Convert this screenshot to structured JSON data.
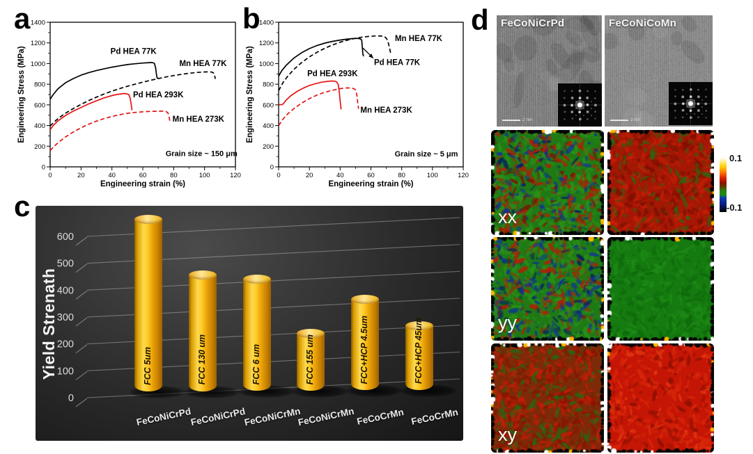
{
  "figure": {
    "panel_labels": {
      "a": "a",
      "b": "b",
      "c": "c",
      "d": "d"
    }
  },
  "chart_data": [
    {
      "id": "a",
      "type": "line",
      "xlabel": "Engineering strain (%)",
      "ylabel": "Engineering Stress (MPa)",
      "xlim": [
        0,
        120
      ],
      "ylim": [
        0,
        1400
      ],
      "xticks": [
        0,
        20,
        40,
        60,
        80,
        100,
        120
      ],
      "yticks": [
        0,
        200,
        400,
        600,
        800,
        1000,
        1200,
        1400
      ],
      "annotation": {
        "text": "Grain size ~ 150 μm",
        "x": 98,
        "y": 105
      },
      "series": [
        {
          "name": "Pd HEA 77K",
          "color": "#000000",
          "dash": false,
          "label_pos": [
            54,
            1095
          ],
          "points": [
            [
              0,
              655
            ],
            [
              2,
              700
            ],
            [
              5,
              755
            ],
            [
              10,
              815
            ],
            [
              15,
              855
            ],
            [
              20,
              888
            ],
            [
              25,
              913
            ],
            [
              30,
              933
            ],
            [
              35,
              950
            ],
            [
              40,
              965
            ],
            [
              45,
              978
            ],
            [
              50,
              990
            ],
            [
              55,
              998
            ],
            [
              60,
              1005
            ],
            [
              64,
              1009
            ],
            [
              66,
              1010
            ],
            [
              67.5,
              1003
            ],
            [
              68.3,
              960
            ],
            [
              68.8,
              900
            ],
            [
              69.2,
              862
            ],
            [
              70,
              856
            ]
          ]
        },
        {
          "name": "Mn HEA 77K",
          "color": "#000000",
          "dash": true,
          "label_pos": [
            99,
            975
          ],
          "points": [
            [
              0,
              395
            ],
            [
              3,
              440
            ],
            [
              6,
              478
            ],
            [
              10,
              520
            ],
            [
              15,
              565
            ],
            [
              20,
              605
            ],
            [
              25,
              642
            ],
            [
              30,
              675
            ],
            [
              35,
              706
            ],
            [
              40,
              733
            ],
            [
              45,
              758
            ],
            [
              50,
              780
            ],
            [
              55,
              800
            ],
            [
              60,
              820
            ],
            [
              65,
              838
            ],
            [
              70,
              855
            ],
            [
              75,
              870
            ],
            [
              80,
              884
            ],
            [
              85,
              896
            ],
            [
              90,
              906
            ],
            [
              95,
              914
            ],
            [
              100,
              919
            ],
            [
              103,
              920
            ],
            [
              105,
              917
            ],
            [
              106,
              905
            ],
            [
              106.6,
              878
            ],
            [
              107,
              852
            ]
          ]
        },
        {
          "name": "Pd HEA 293K",
          "color": "#e41313",
          "dash": false,
          "label_pos": [
            70,
            672
          ],
          "points": [
            [
              0,
              360
            ],
            [
              2,
              400
            ],
            [
              5,
              445
            ],
            [
              10,
              498
            ],
            [
              15,
              540
            ],
            [
              20,
              575
            ],
            [
              25,
              610
            ],
            [
              30,
              640
            ],
            [
              35,
              668
            ],
            [
              40,
              690
            ],
            [
              43,
              700
            ],
            [
              46,
              707
            ],
            [
              48,
              710
            ],
            [
              50,
              706
            ],
            [
              51,
              698
            ],
            [
              51.8,
              665
            ],
            [
              52.4,
              610
            ],
            [
              53,
              548
            ]
          ]
        },
        {
          "name": "Mn HEA 273K",
          "color": "#e41313",
          "dash": true,
          "label_pos": [
            96,
            438
          ],
          "points": [
            [
              0,
              158
            ],
            [
              3,
              205
            ],
            [
              6,
              245
            ],
            [
              10,
              290
            ],
            [
              15,
              338
            ],
            [
              20,
              378
            ],
            [
              25,
              413
            ],
            [
              30,
              443
            ],
            [
              35,
              468
            ],
            [
              40,
              488
            ],
            [
              45,
              505
            ],
            [
              50,
              518
            ],
            [
              55,
              527
            ],
            [
              60,
              533
            ],
            [
              65,
              537
            ],
            [
              70,
              539
            ],
            [
              73,
              539
            ],
            [
              75,
              535
            ],
            [
              76,
              527
            ],
            [
              76.6,
              510
            ],
            [
              77.2,
              468
            ],
            [
              77.8,
              432
            ]
          ]
        }
      ]
    },
    {
      "id": "b",
      "type": "line",
      "xlabel": "Engineering strain (%)",
      "ylabel": "Engineering Stress (MPa)",
      "xlim": [
        0,
        120
      ],
      "ylim": [
        0,
        1400
      ],
      "xticks": [
        0,
        20,
        40,
        60,
        80,
        100,
        120
      ],
      "yticks": [
        0,
        200,
        400,
        600,
        800,
        1000,
        1200,
        1400
      ],
      "annotation": {
        "text": "Grain size ~ 5 μm",
        "x": 96,
        "y": 100
      },
      "arrow": {
        "from": [
          54.8,
          1150
        ],
        "to": [
          61.5,
          1052
        ]
      },
      "series": [
        {
          "name": "Pd HEA 77K",
          "color": "#000000",
          "dash": false,
          "label_pos": [
            77,
            985
          ],
          "points": [
            [
              0,
              878
            ],
            [
              2,
              930
            ],
            [
              5,
              985
            ],
            [
              10,
              1055
            ],
            [
              15,
              1105
            ],
            [
              20,
              1145
            ],
            [
              25,
              1175
            ],
            [
              30,
              1198
            ],
            [
              35,
              1215
            ],
            [
              40,
              1228
            ],
            [
              44,
              1236
            ],
            [
              48,
              1242
            ],
            [
              51,
              1244
            ],
            [
              53,
              1240
            ],
            [
              54,
              1228
            ],
            [
              54.4,
              1160
            ],
            [
              54.8,
              1090
            ],
            [
              55.2,
              1070
            ]
          ]
        },
        {
          "name": "Mn HEA 77K",
          "color": "#000000",
          "dash": true,
          "label_pos": [
            91,
            1218
          ],
          "points": [
            [
              0,
              738
            ],
            [
              3,
              820
            ],
            [
              6,
              880
            ],
            [
              10,
              945
            ],
            [
              15,
              1010
            ],
            [
              20,
              1065
            ],
            [
              25,
              1110
            ],
            [
              30,
              1148
            ],
            [
              35,
              1180
            ],
            [
              40,
              1207
            ],
            [
              45,
              1228
            ],
            [
              50,
              1245
            ],
            [
              55,
              1257
            ],
            [
              60,
              1265
            ],
            [
              64,
              1268
            ],
            [
              67,
              1266
            ],
            [
              69,
              1257
            ],
            [
              70,
              1246
            ],
            [
              71,
              1218
            ],
            [
              72,
              1158
            ],
            [
              72.6,
              1115
            ],
            [
              73,
              1098
            ]
          ]
        },
        {
          "name": "Pd HEA 293K",
          "color": "#e41313",
          "dash": false,
          "label_pos": [
            35,
            878
          ],
          "points": [
            [
              0,
              598
            ],
            [
              1,
              604
            ],
            [
              2,
              601
            ],
            [
              3,
              610
            ],
            [
              5,
              648
            ],
            [
              8,
              690
            ],
            [
              12,
              730
            ],
            [
              16,
              762
            ],
            [
              20,
              788
            ],
            [
              24,
              806
            ],
            [
              28,
              820
            ],
            [
              32,
              828
            ],
            [
              34.5,
              831
            ],
            [
              36.5,
              829
            ],
            [
              37.8,
              822
            ],
            [
              38.8,
              795
            ],
            [
              39.4,
              730
            ],
            [
              40,
              640
            ],
            [
              40.6,
              556
            ]
          ]
        },
        {
          "name": "Mn HEA 273K",
          "color": "#e41313",
          "dash": true,
          "label_pos": [
            70,
            525
          ],
          "points": [
            [
              0,
              400
            ],
            [
              3,
              465
            ],
            [
              6,
              515
            ],
            [
              10,
              565
            ],
            [
              15,
              618
            ],
            [
              20,
              660
            ],
            [
              25,
              695
            ],
            [
              30,
              722
            ],
            [
              35,
              742
            ],
            [
              40,
              757
            ],
            [
              44,
              764
            ],
            [
              47,
              764
            ],
            [
              48.8,
              757
            ],
            [
              50,
              745
            ],
            [
              50.8,
              700
            ],
            [
              51.4,
              625
            ],
            [
              52,
              562
            ]
          ]
        }
      ]
    },
    {
      "id": "c",
      "type": "bar",
      "ylabel": "Yield Strenath",
      "yticks": [
        0,
        100,
        200,
        300,
        400,
        500,
        600
      ],
      "categories": [
        "FeCoNiCrPd",
        "FeCoNiCrPd",
        "FeCoNiCrMn",
        "FeCoNiCrMn",
        "FeCoCrMn",
        "FeCoCrMn"
      ],
      "bar_labels": [
        "FCC 5um",
        "FCC 130 um",
        "FCC 6 um",
        "FCC 155 um",
        "FCC+HCP 4.5um",
        "FCC+HCP 45um"
      ],
      "values": [
        630,
        425,
        410,
        210,
        335,
        235
      ],
      "bar_color": "#f5b800"
    }
  ],
  "panel_d": {
    "tem_images": [
      {
        "label": "FeCoNiCrPd",
        "scalebar": "2 nm"
      },
      {
        "label": "FeCoNiCoMn",
        "scalebar": "2 nm"
      }
    ],
    "map_rows": [
      {
        "label": "xx"
      },
      {
        "label": "yy"
      },
      {
        "label": "xy"
      }
    ],
    "maps": [
      {
        "row": "xx",
        "col": "FeCoNiCrPd",
        "base": "#1f7a15",
        "n": 650,
        "speckles": [
          [
            "#b71c06",
            0.3
          ],
          [
            "#7a1200",
            0.12
          ],
          [
            "#10309c",
            0.14
          ],
          [
            "#051a60",
            0.06
          ],
          [
            "#2b9318",
            0.38
          ]
        ]
      },
      {
        "row": "xx",
        "col": "FeCoNiCoMn",
        "base": "#a51605",
        "n": 520,
        "speckles": [
          [
            "#c61f07",
            0.4
          ],
          [
            "#7c1000",
            0.28
          ],
          [
            "#206c12",
            0.22
          ],
          [
            "#8a2c00",
            0.1
          ]
        ]
      },
      {
        "row": "yy",
        "col": "FeCoNiCrPd",
        "base": "#1f7a15",
        "n": 650,
        "speckles": [
          [
            "#b71c06",
            0.26
          ],
          [
            "#10309c",
            0.2
          ],
          [
            "#051a60",
            0.08
          ],
          [
            "#2b9318",
            0.46
          ]
        ]
      },
      {
        "row": "yy",
        "col": "FeCoNiCoMn",
        "base": "#157a10",
        "n": 320,
        "speckles": [
          [
            "#1e8c16",
            0.55
          ],
          [
            "#0e690b",
            0.45
          ]
        ]
      },
      {
        "row": "xy",
        "col": "FeCoNiCrPd",
        "base": "#7c2a08",
        "n": 620,
        "speckles": [
          [
            "#c41d07",
            0.42
          ],
          [
            "#206c12",
            0.3
          ],
          [
            "#8a1200",
            0.28
          ]
        ]
      },
      {
        "row": "xy",
        "col": "FeCoNiCoMn",
        "base": "#c41505",
        "n": 380,
        "speckles": [
          [
            "#d8260a",
            0.5
          ],
          [
            "#8c1000",
            0.28
          ],
          [
            "#e23812",
            0.22
          ]
        ]
      }
    ],
    "colorbar": {
      "max": "0.1",
      "min": "-0.1",
      "stops": [
        "#ffffff",
        "#ffee88",
        "#ffcc00",
        "#ff7700",
        "#dd2200",
        "#8a1200",
        "#5a4500",
        "#2e7d14",
        "#1e8c16",
        "#1038b0",
        "#0a1f8a",
        "#04103f",
        "#000000"
      ]
    }
  }
}
